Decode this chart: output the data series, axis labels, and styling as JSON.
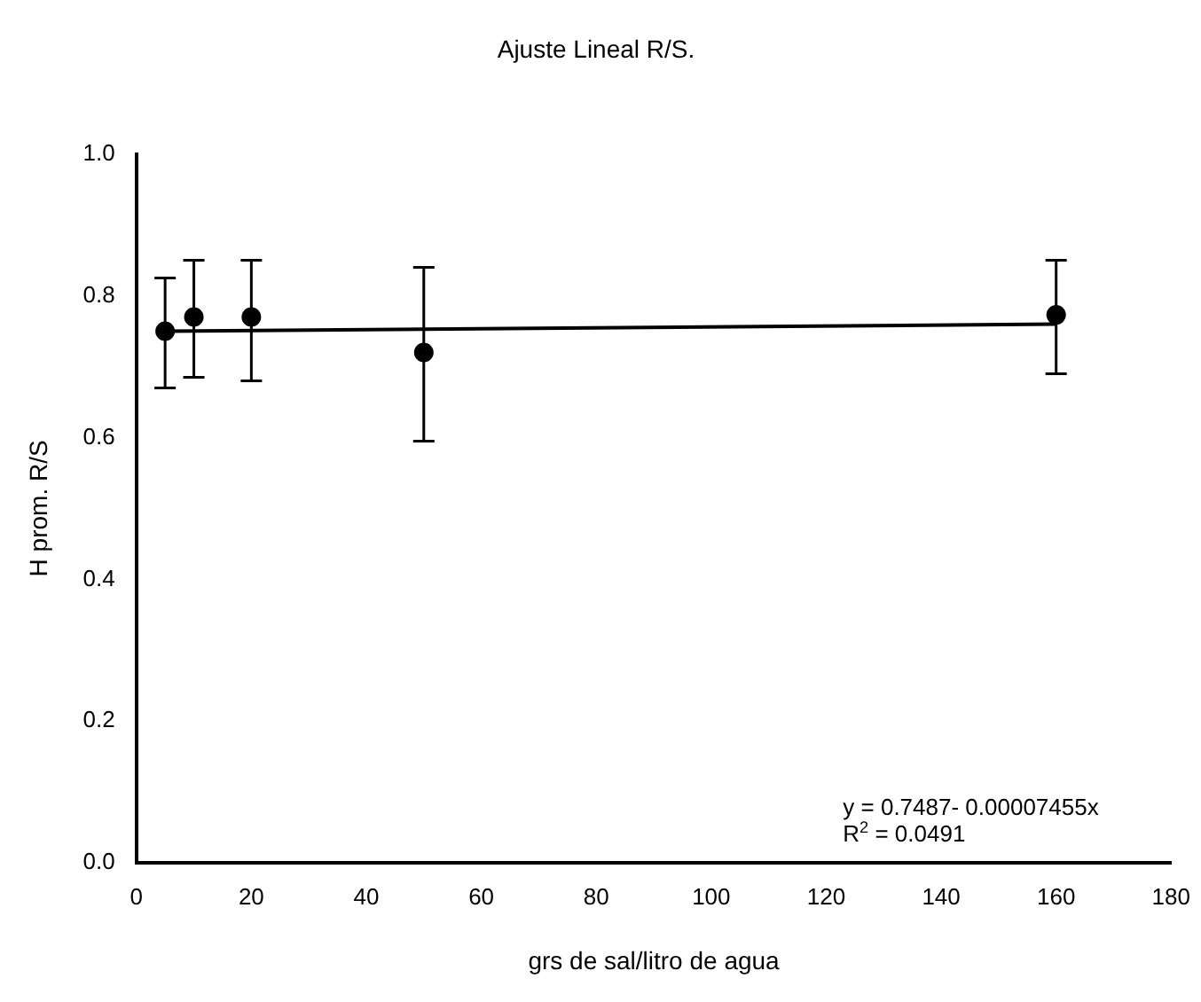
{
  "chart_data": {
    "type": "scatter",
    "title": "Ajuste Lineal R/S.",
    "xlabel": "grs de sal/litro de agua",
    "ylabel": "H prom. R/S",
    "annotations": [
      "y = 0.7487- 0.00007455x",
      "R$^{2}$ = 0.0491"
    ],
    "series": [
      {
        "marker": "circle",
        "color": "#000000",
        "x": [
          5,
          10,
          20,
          50,
          160
        ],
        "values": [
          0.75,
          0.77,
          0.77,
          0.72,
          0.773
        ],
        "errors": [
          [
            0.67,
            0.825
          ],
          [
            0.685,
            0.85
          ],
          [
            0.68,
            0.85
          ],
          [
            0.595,
            0.84
          ],
          [
            0.69,
            0.85
          ]
        ]
      },
      {
        "type": "line",
        "color": "#000000",
        "x": [
          5,
          160
        ],
        "values": [
          0.75,
          0.76
        ]
      }
    ],
    "xlim": [
      0,
      180
    ],
    "xticks": [
      0,
      20,
      40,
      60,
      80,
      100,
      120,
      140,
      160,
      180
    ],
    "ylim": [
      0,
      1
    ],
    "yticks": [
      {
        "value": 0,
        "label": "0.0"
      },
      {
        "value": 0.2,
        "label": "0.2"
      },
      {
        "value": 0.4,
        "label": "0.4"
      },
      {
        "value": 0.6,
        "label": "0.6"
      },
      {
        "value": 0.8,
        "label": "0.8"
      },
      {
        "value": 1,
        "label": "1.0"
      }
    ],
    "grid": false,
    "legend": false
  }
}
